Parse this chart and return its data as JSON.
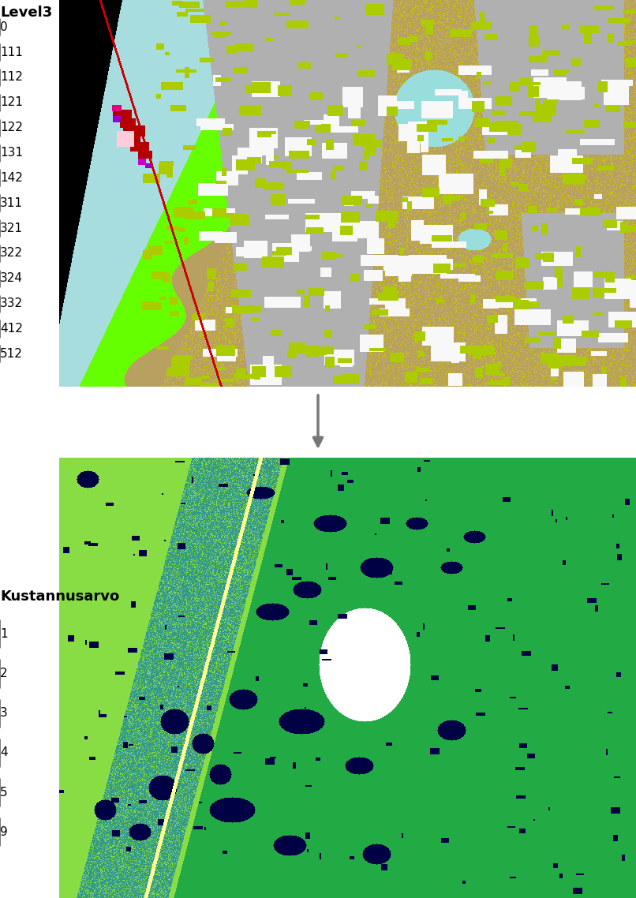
{
  "fig_width": 8.06,
  "fig_height": 11.38,
  "dpi": 100,
  "background_color": "#ffffff",
  "top_legend": {
    "title": "Level3",
    "title_fontsize": 13,
    "title_bold": true,
    "items": [
      {
        "label": "0",
        "color": "#000000"
      },
      {
        "label": "111",
        "color": "#e0007f"
      },
      {
        "label": "112",
        "color": "#ff0000"
      },
      {
        "label": "121",
        "color": "#9900cc"
      },
      {
        "label": "122",
        "color": "#cc0000"
      },
      {
        "label": "131",
        "color": "#cc00cc"
      },
      {
        "label": "142",
        "color": "#ffccee"
      },
      {
        "label": "311",
        "color": "#66ff00"
      },
      {
        "label": "321",
        "color": "#cccc00"
      },
      {
        "label": "322",
        "color": "#b8a060"
      },
      {
        "label": "324",
        "color": "#aacc00"
      },
      {
        "label": "332",
        "color": "#b0b0b0"
      },
      {
        "label": "412",
        "color": "#f0f0f0"
      },
      {
        "label": "512",
        "color": "#99dddd"
      }
    ],
    "fontsize": 11
  },
  "bottom_legend": {
    "title": "Kustannusarvo",
    "title_fontsize": 13,
    "title_bold": true,
    "items": [
      {
        "label": "1",
        "color": "#ffff99"
      },
      {
        "label": "2",
        "color": "#88dd44"
      },
      {
        "label": "3",
        "color": "#22aa44"
      },
      {
        "label": "4",
        "color": "#339988"
      },
      {
        "label": "5",
        "color": "#4466aa"
      },
      {
        "label": "9",
        "color": "#000044"
      }
    ],
    "fontsize": 11
  },
  "top_map": {
    "sea_color": [
      168,
      221,
      224
    ],
    "black_color": [
      0,
      0,
      0
    ],
    "green311_color": [
      102,
      255,
      0
    ],
    "green324_color": [
      170,
      204,
      0
    ],
    "tan322_color": [
      184,
      160,
      96
    ],
    "gray332_color": [
      176,
      176,
      176
    ],
    "white412_color": [
      248,
      248,
      248
    ],
    "lake512_color": [
      153,
      221,
      221
    ],
    "red_road_color": [
      204,
      0,
      0
    ],
    "red122_color": [
      180,
      0,
      0
    ],
    "pink111_color": [
      224,
      0,
      127
    ],
    "purple121_color": [
      153,
      0,
      204
    ],
    "purple131_color": [
      204,
      0,
      204
    ],
    "pink142_color": [
      255,
      204,
      220
    ],
    "ygreen321_color": [
      204,
      204,
      0
    ]
  },
  "bottom_map": {
    "lgreen2_color": [
      136,
      221,
      68
    ],
    "dgreen3_color": [
      34,
      170,
      68
    ],
    "teal4_color": [
      51,
      153,
      136
    ],
    "blue5_color": [
      68,
      102,
      170
    ],
    "navy9_color": [
      0,
      0,
      68
    ],
    "yellow1_color": [
      255,
      255,
      153
    ],
    "white_color": [
      255,
      255,
      255
    ]
  }
}
